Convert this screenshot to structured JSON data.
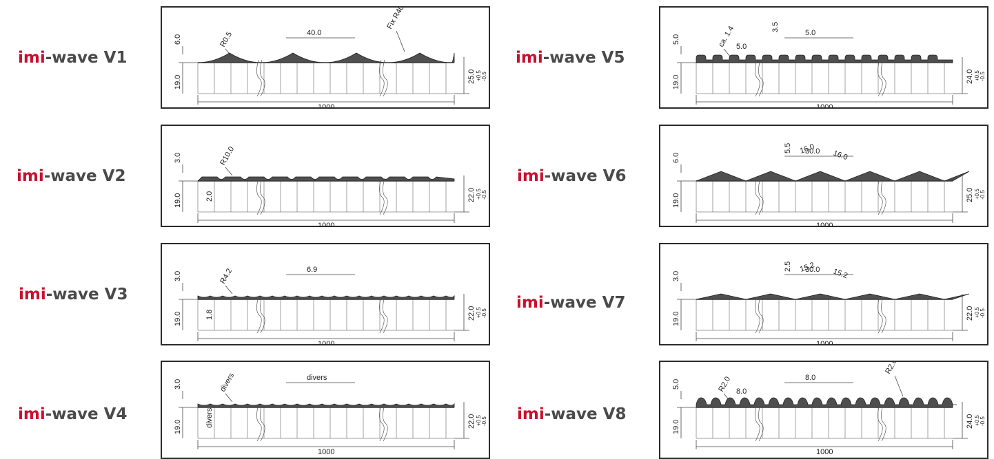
{
  "colors": {
    "brand": "#c8102e",
    "label": "#4a4a4a",
    "profile": "#4f4f4f",
    "line": "#444444"
  },
  "products": [
    {
      "id": "v1",
      "brand": "imi",
      "suffix": "-wave V1",
      "profile": "arch",
      "dims": {
        "top_height": "6.0",
        "base": "19.0",
        "pitch": "40.0",
        "radius_a": "R0.5",
        "radius_b": "Fix R40.0",
        "total": "25.0",
        "tol": "+0.5\n-0.5",
        "width": "1000"
      }
    },
    {
      "id": "v2",
      "brand": "imi",
      "suffix": "-wave V2",
      "profile": "trapezoid",
      "dims": {
        "top_height": "3.0",
        "base": "19.0",
        "radius_a": "R10.0",
        "sub_height": "2.0",
        "total": "22.0",
        "tol": "+0.5\n-0.5",
        "width": "1000"
      }
    },
    {
      "id": "v3",
      "brand": "imi",
      "suffix": "-wave V3",
      "profile": "scallop",
      "dims": {
        "top_height": "3.0",
        "base": "19.0",
        "radius_a": "R4.2",
        "pitch": "6.9",
        "sub_height": "1.8",
        "total": "22.0",
        "tol": "+0.5\n-0.5",
        "width": "1000"
      }
    },
    {
      "id": "v4",
      "brand": "imi",
      "suffix": "-wave V4",
      "profile": "scallop",
      "dims": {
        "top_height": "3.0",
        "base": "19.0",
        "radius_a": "divers",
        "pitch": "divers",
        "sub_height": "divers",
        "total": "22.0",
        "tol": "+0.5\n-0.5",
        "width": "1000"
      }
    },
    {
      "id": "v5",
      "brand": "imi",
      "suffix": "-wave V5",
      "profile": "bumps",
      "dims": {
        "top_height": "5.0",
        "base": "19.0",
        "pitch": "5.0",
        "gap": "5.0",
        "bump_h": "3.5",
        "radius_a": "ca. 1.4",
        "total": "24.0",
        "tol": "+0.5\n-0.5",
        "width": "1000"
      }
    },
    {
      "id": "v6",
      "brand": "imi",
      "suffix": "-wave V6",
      "profile": "triangle",
      "dims": {
        "top_height": "6.0",
        "base": "19.0",
        "pitch": "30.0",
        "peak": "5.5",
        "side_a": "16.0",
        "side_b": "16.0",
        "total": "25.0",
        "tol": "+0.5\n-0.5",
        "width": "1000"
      }
    },
    {
      "id": "v7",
      "brand": "imi",
      "suffix": "-wave V7",
      "profile": "triangle-low",
      "dims": {
        "top_height": "3.0",
        "base": "19.0",
        "pitch": "30.0",
        "peak": "2.5",
        "side_a": "15.2",
        "side_b": "15.2",
        "total": "22.0",
        "tol": "+0.5\n-0.5",
        "width": "1000"
      }
    },
    {
      "id": "v8",
      "brand": "imi",
      "suffix": "-wave V8",
      "profile": "round",
      "dims": {
        "top_height": "5.0",
        "base": "19.0",
        "pitch": "8.0",
        "gap": "8.0",
        "radius_a": "R2.0",
        "radius_b": "R2.0",
        "total": "24.0",
        "tol": "+0.5\n-0.5",
        "width": "1000"
      }
    }
  ]
}
